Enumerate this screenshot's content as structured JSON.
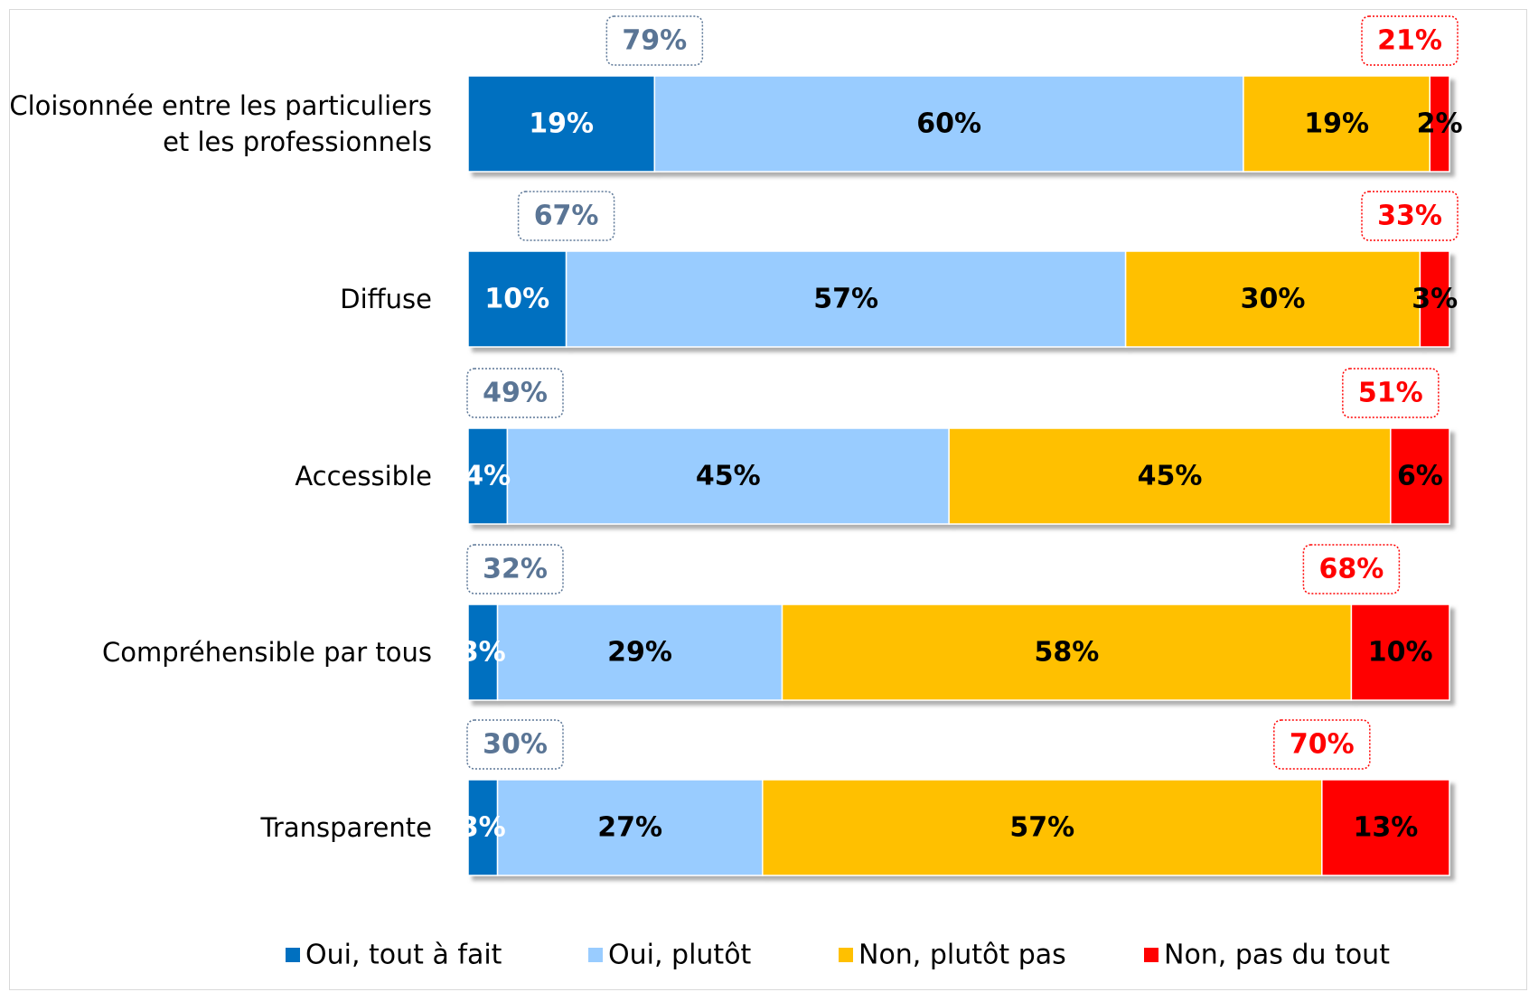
{
  "chart_data": {
    "type": "stacked_bar_horizontal",
    "categories": [
      "Cloisonnée entre les particuliers\net les professionnels",
      "Diffuse",
      "Accessible",
      "Compréhensible par tous",
      "Transparente"
    ],
    "xlim": [
      0,
      100
    ],
    "series": [
      {
        "name": "Oui, tout à fait",
        "color": "#0070c0",
        "label_color": "#ffffff",
        "values": [
          19,
          10,
          4,
          3,
          3
        ],
        "value_labels": [
          "19%",
          "10%",
          "4%",
          "3%",
          "3%"
        ]
      },
      {
        "name": "Oui, plutôt",
        "color": "#99ccff",
        "label_color": "#000000",
        "values": [
          60,
          57,
          45,
          29,
          27
        ],
        "value_labels": [
          "60%",
          "57%",
          "45%",
          "29%",
          "27%"
        ]
      },
      {
        "name": "Non, plutôt pas",
        "color": "#ffc000",
        "label_color": "#000000",
        "values": [
          19,
          30,
          45,
          58,
          57
        ],
        "value_labels": [
          "19%",
          "30%",
          "45%",
          "58%",
          "57%"
        ]
      },
      {
        "name": "Non, pas du tout",
        "color": "#ff0000",
        "label_color": "#000000",
        "values": [
          2,
          3,
          6,
          10,
          13
        ],
        "value_labels": [
          "2%",
          "3%",
          "6%",
          "10%",
          "13%"
        ]
      }
    ],
    "totals": [
      {
        "color": "#5a7595",
        "values": [
          79,
          67,
          49,
          32,
          30
        ],
        "value_labels": [
          "79%",
          "67%",
          "49%",
          "32%",
          "30%"
        ]
      },
      {
        "color": "#ff0000",
        "values": [
          21,
          33,
          51,
          68,
          70
        ],
        "value_labels": [
          "21%",
          "33%",
          "51%",
          "68%",
          "70%"
        ]
      }
    ],
    "legend": "bottom"
  }
}
